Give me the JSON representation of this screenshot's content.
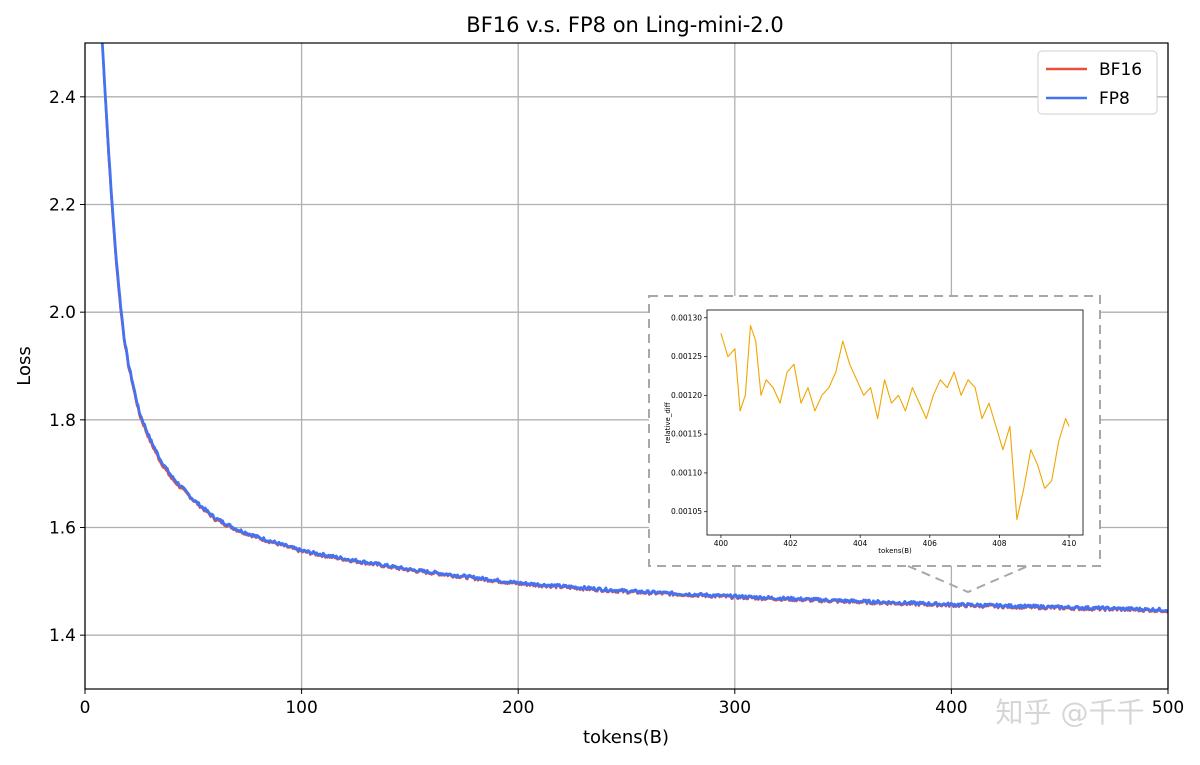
{
  "chart_data": [
    {
      "type": "line",
      "title": "BF16 v.s. FP8 on Ling-mini-2.0",
      "xlabel": "tokens(B)",
      "ylabel": "Loss",
      "xlim": [
        0,
        500
      ],
      "ylim": [
        1.3,
        2.5
      ],
      "xticks": [
        0,
        100,
        200,
        300,
        400,
        500
      ],
      "xtick_labels": [
        "0",
        "100",
        "200",
        "300",
        "400",
        "500"
      ],
      "yticks": [
        1.4,
        1.6,
        1.8,
        2.0,
        2.2,
        2.4
      ],
      "ytick_labels": [
        "1.4",
        "1.6",
        "1.8",
        "2.0",
        "2.2",
        "2.4"
      ],
      "grid": true,
      "legend_position": "top-right",
      "series": [
        {
          "name": "BF16",
          "color": "#e8503a",
          "x": [
            8,
            10,
            12,
            14,
            16,
            18,
            20,
            25,
            30,
            35,
            40,
            50,
            60,
            70,
            80,
            100,
            120,
            150,
            200,
            250,
            300,
            350,
            400,
            450,
            500
          ],
          "y": [
            2.5,
            2.35,
            2.22,
            2.11,
            2.02,
            1.95,
            1.9,
            1.81,
            1.76,
            1.72,
            1.69,
            1.65,
            1.615,
            1.595,
            1.58,
            1.555,
            1.54,
            1.52,
            1.495,
            1.48,
            1.47,
            1.462,
            1.455,
            1.45,
            1.445
          ]
        },
        {
          "name": "FP8",
          "color": "#4472f0",
          "x": [
            8,
            10,
            12,
            14,
            16,
            18,
            20,
            25,
            30,
            35,
            40,
            50,
            60,
            70,
            80,
            100,
            120,
            150,
            200,
            250,
            300,
            350,
            400,
            450,
            500
          ],
          "y": [
            2.5,
            2.36,
            2.23,
            2.12,
            2.03,
            1.955,
            1.905,
            1.815,
            1.765,
            1.725,
            1.695,
            1.652,
            1.618,
            1.597,
            1.582,
            1.557,
            1.542,
            1.522,
            1.497,
            1.482,
            1.472,
            1.464,
            1.457,
            1.452,
            1.447
          ]
        }
      ]
    },
    {
      "type": "line",
      "title": "",
      "xlabel": "tokens(B)",
      "ylabel": "relative_diff",
      "xlim": [
        399.6,
        410.4
      ],
      "ylim": [
        0.00102,
        0.00131
      ],
      "xticks": [
        400,
        402,
        404,
        406,
        408,
        410
      ],
      "xtick_labels": [
        "400",
        "402",
        "404",
        "406",
        "408",
        "410"
      ],
      "yticks": [
        0.00105,
        0.0011,
        0.00115,
        0.0012,
        0.00125,
        0.0013
      ],
      "ytick_labels": [
        "0.00105",
        "0.00110",
        "0.00115",
        "0.00120",
        "0.00125",
        "0.00130"
      ],
      "grid": false,
      "series": [
        {
          "color": "#f0a500",
          "x": [
            400.0,
            400.2,
            400.4,
            400.55,
            400.7,
            400.85,
            401.0,
            401.15,
            401.3,
            401.5,
            401.7,
            401.9,
            402.1,
            402.3,
            402.5,
            402.7,
            402.9,
            403.1,
            403.3,
            403.5,
            403.7,
            403.9,
            404.1,
            404.3,
            404.5,
            404.7,
            404.9,
            405.1,
            405.3,
            405.5,
            405.7,
            405.9,
            406.1,
            406.3,
            406.5,
            406.7,
            406.9,
            407.1,
            407.3,
            407.5,
            407.7,
            407.9,
            408.1,
            408.3,
            408.5,
            408.7,
            408.9,
            409.1,
            409.3,
            409.5,
            409.7,
            409.9,
            410.0
          ],
          "y": [
            0.00128,
            0.00125,
            0.00126,
            0.00118,
            0.0012,
            0.00129,
            0.00127,
            0.0012,
            0.00122,
            0.00121,
            0.00119,
            0.00123,
            0.00124,
            0.00119,
            0.00121,
            0.00118,
            0.0012,
            0.00121,
            0.00123,
            0.00127,
            0.00124,
            0.00122,
            0.0012,
            0.00121,
            0.00117,
            0.00122,
            0.00119,
            0.0012,
            0.00118,
            0.00121,
            0.00119,
            0.00117,
            0.0012,
            0.00122,
            0.00121,
            0.00123,
            0.0012,
            0.00122,
            0.00121,
            0.00117,
            0.00119,
            0.00116,
            0.00113,
            0.00116,
            0.00104,
            0.00108,
            0.00113,
            0.00111,
            0.00108,
            0.00109,
            0.00114,
            0.00117,
            0.00116
          ]
        }
      ]
    }
  ],
  "watermark": "知乎 @千千"
}
